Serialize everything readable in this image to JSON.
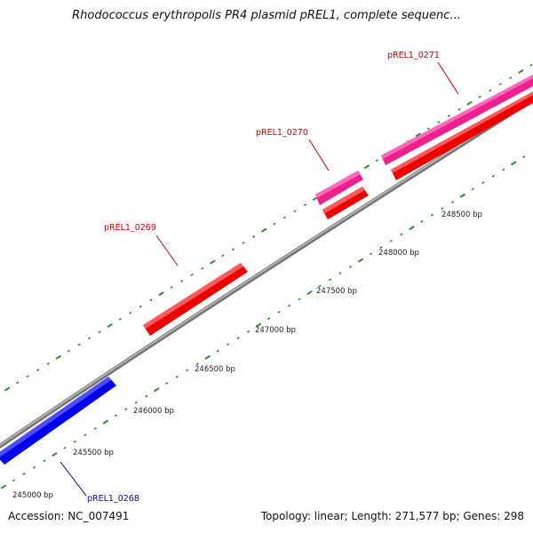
{
  "title": "Rhodococcus erythropolis PR4 plasmid pREL1, complete sequenc...",
  "footer": {
    "accession": "Accession: NC_007491",
    "summary": "Topology: linear; Length: 271,577 bp; Genes: 298"
  },
  "colors": {
    "background": "#ffffff",
    "backbone": "#8c8c8c",
    "tick": "#2e8b2e",
    "gene_red": "#ee0000",
    "gene_pink": "#ee1f8e",
    "gene_blue": "#0000ee",
    "label_red": "#cc0000",
    "label_blue": "#0000cc"
  },
  "coordinates": [
    {
      "label": "245000 bp"
    },
    {
      "label": "245500 bp"
    },
    {
      "label": "246000 bp"
    },
    {
      "label": "246500 bp"
    },
    {
      "label": "247000 bp"
    },
    {
      "label": "247500 bp"
    },
    {
      "label": "248000 bp"
    },
    {
      "label": "248500 bp"
    }
  ],
  "genes": [
    {
      "name": "pREL1_0268",
      "color": "blue"
    },
    {
      "name": "pREL1_0269",
      "color": "red"
    },
    {
      "name": "pREL1_0270",
      "color": "pink-red"
    },
    {
      "name": "pREL1_0271",
      "color": "pink-red"
    }
  ]
}
